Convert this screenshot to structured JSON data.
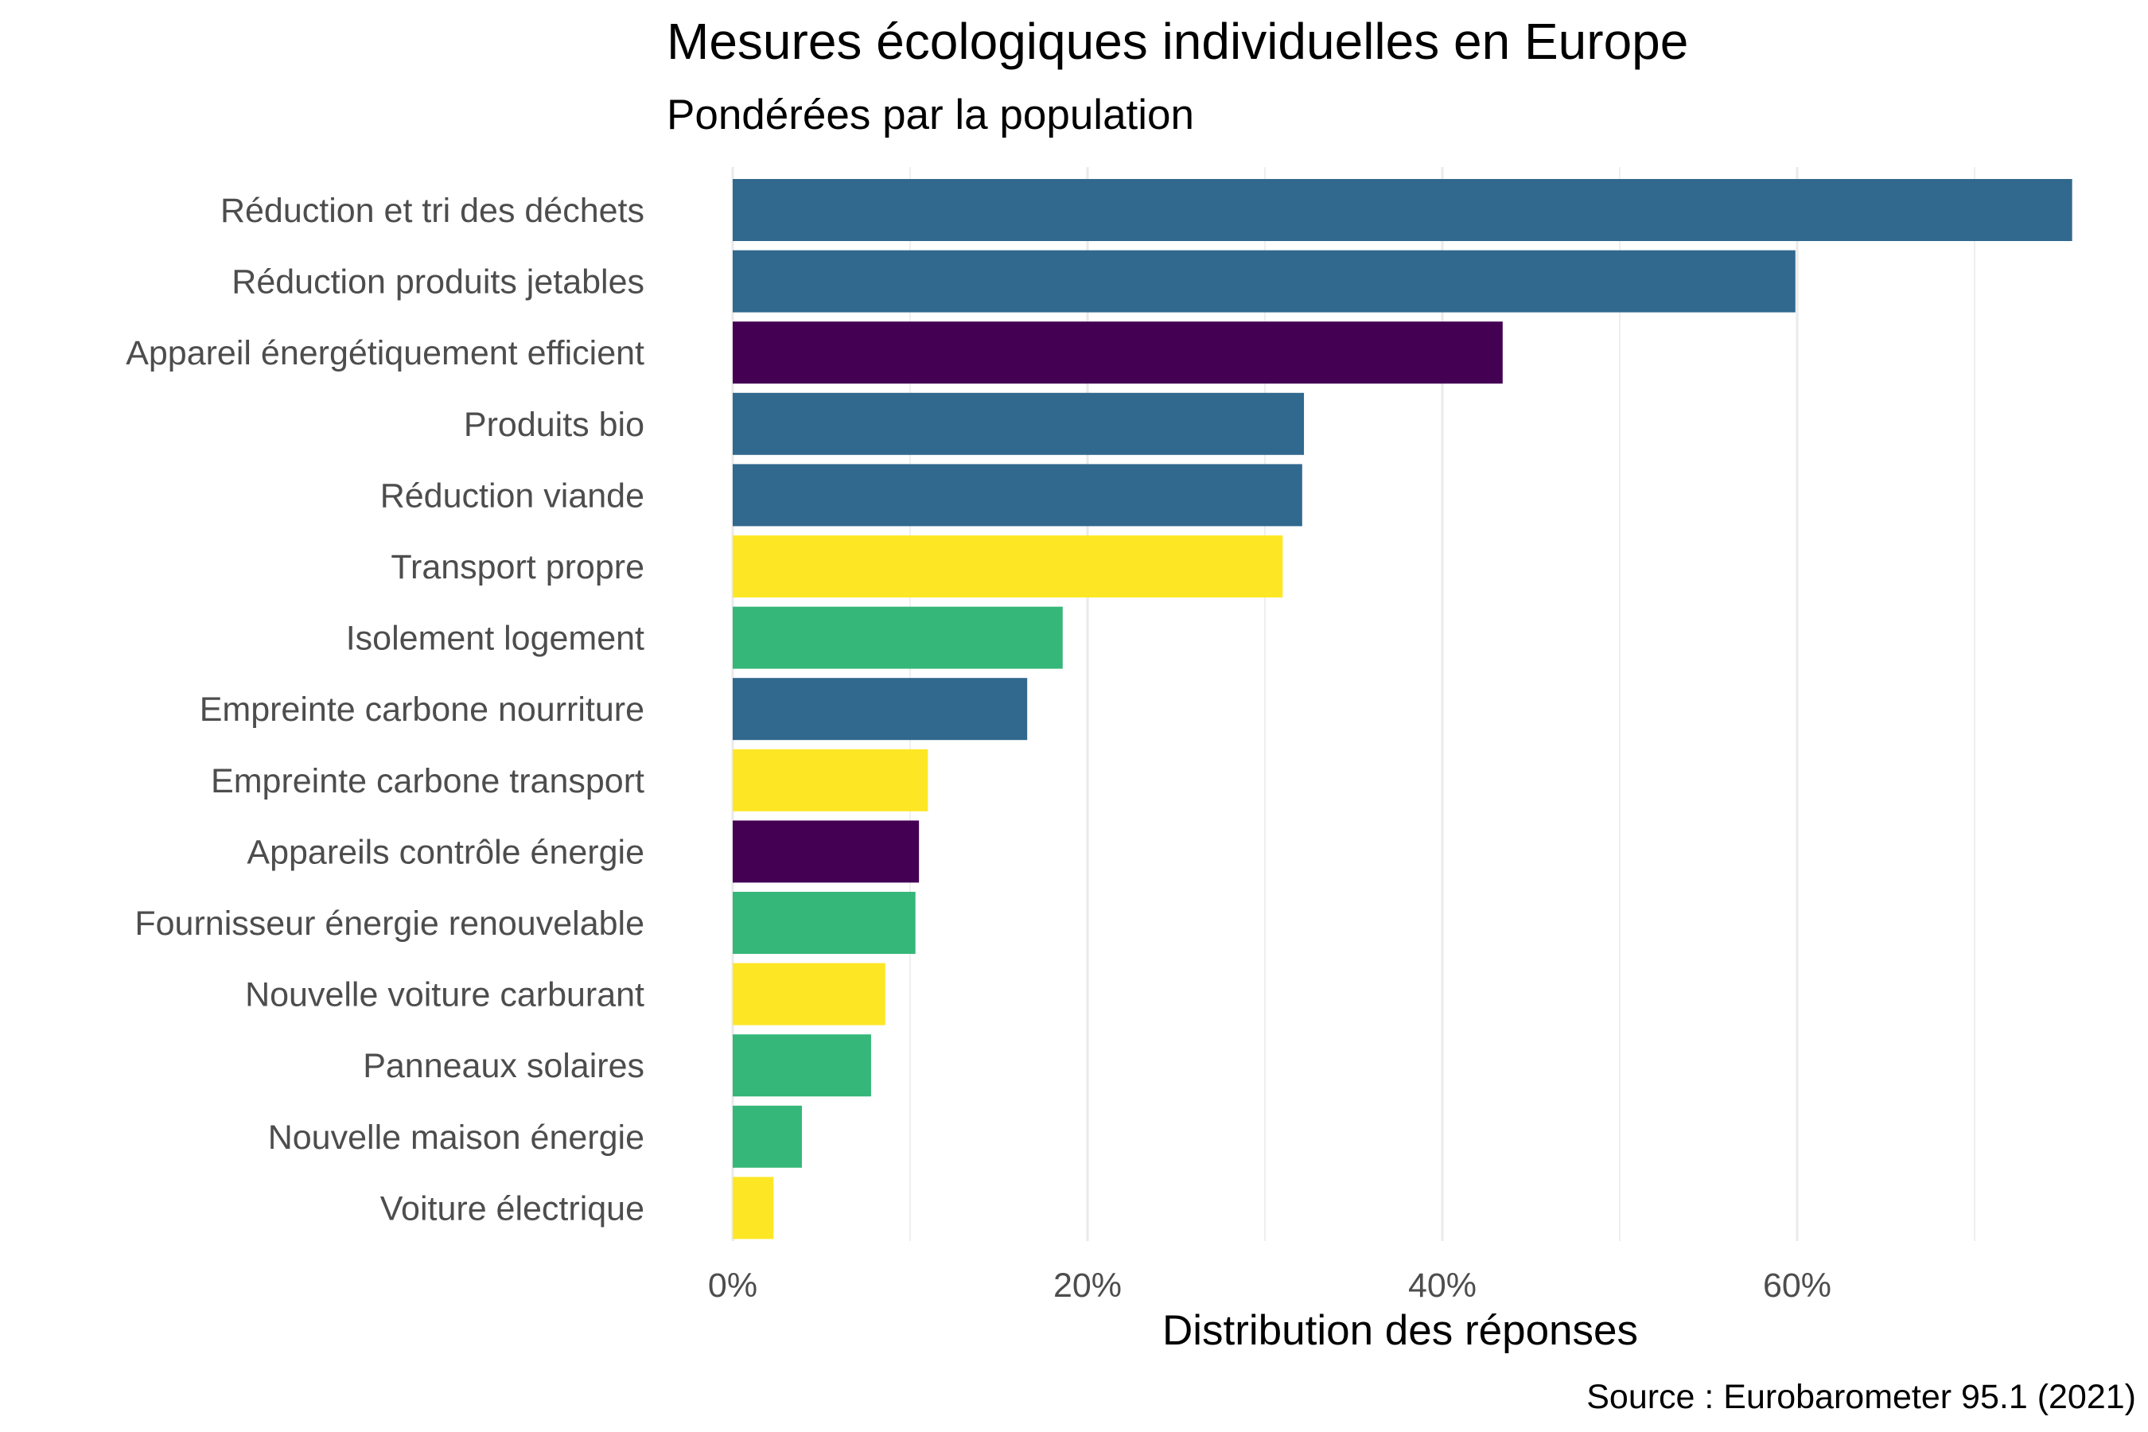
{
  "chart_data": {
    "type": "bar",
    "orientation": "horizontal",
    "title": "Mesures écologiques individuelles en Europe",
    "subtitle": "Pondérées par la population",
    "xlabel": "Distribution des réponses",
    "ylabel": "",
    "caption": "Source : Eurobarometer 95.1 (2021)",
    "xlim": [
      0,
      75.5
    ],
    "x_ticks": [
      0,
      20,
      40,
      60
    ],
    "x_tick_labels": [
      "0%",
      "20%",
      "40%",
      "60%"
    ],
    "grid": true,
    "legend": "none",
    "categories": [
      "Réduction et tri des déchets",
      "Réduction produits jetables",
      "Appareil énergétiquement efficient",
      "Produits bio",
      "Réduction viande",
      "Transport propre",
      "Isolement logement",
      "Empreinte carbone nourriture",
      "Empreinte carbone transport",
      "Appareils contrôle énergie",
      "Fournisseur énergie renouvelable",
      "Nouvelle voiture carburant",
      "Panneaux solaires",
      "Nouvelle maison énergie",
      "Voiture électrique"
    ],
    "values": [
      75.5,
      59.9,
      43.4,
      32.2,
      32.1,
      31.0,
      18.6,
      16.6,
      11.0,
      10.5,
      10.3,
      8.6,
      7.8,
      3.9,
      2.3
    ],
    "bar_colors": [
      "#31688e",
      "#31688e",
      "#440154",
      "#31688e",
      "#31688e",
      "#fde725",
      "#35b779",
      "#31688e",
      "#fde725",
      "#440154",
      "#35b779",
      "#fde725",
      "#35b779",
      "#35b779",
      "#fde725"
    ]
  }
}
